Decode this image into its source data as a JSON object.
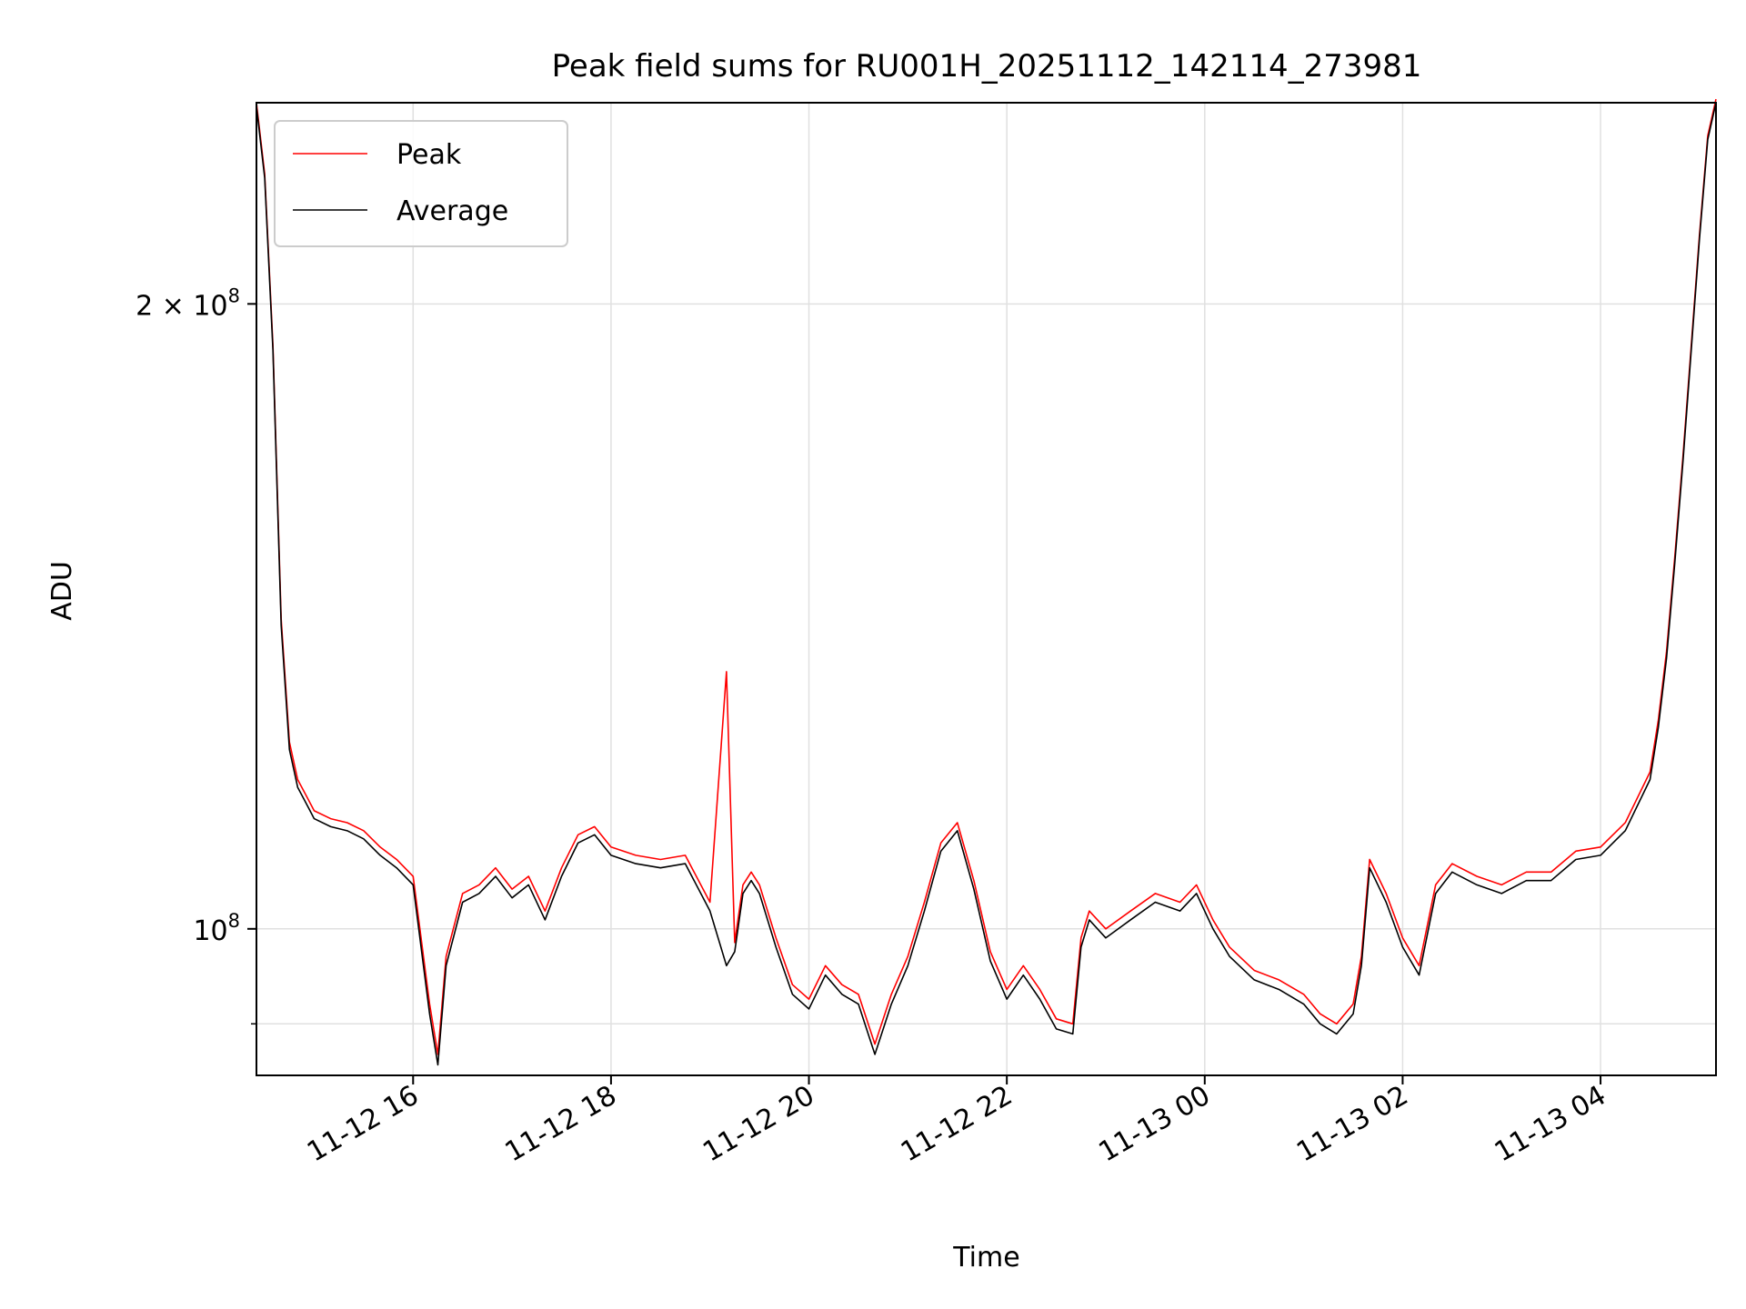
{
  "chart_data": {
    "type": "line",
    "title": "Peak field sums for RU001H_20251112_142114_273981",
    "xlabel": "Time",
    "ylabel": "ADU",
    "yscale": "log",
    "xlim": [
      "2025-11-12 14:25",
      "2025-11-13 05:10"
    ],
    "ylim": [
      85000000,
      250000000
    ],
    "grid": true,
    "legend_position": "top-left",
    "x_ticks": [
      "11-12 16",
      "11-12 18",
      "11-12 20",
      "11-12 22",
      "11-13 00",
      "11-13 02",
      "11-13 04"
    ],
    "y_ticks": [
      {
        "value": 100000000,
        "label_base": "10",
        "label_exp": "8"
      },
      {
        "value": 200000000,
        "label_base": "2 × 10",
        "label_exp": "8"
      }
    ],
    "x": [
      "2025-11-12 14:25",
      "2025-11-12 14:30",
      "2025-11-12 14:35",
      "2025-11-12 14:40",
      "2025-11-12 14:45",
      "2025-11-12 14:50",
      "2025-11-12 14:55",
      "2025-11-12 15:00",
      "2025-11-12 15:10",
      "2025-11-12 15:20",
      "2025-11-12 15:30",
      "2025-11-12 15:40",
      "2025-11-12 15:50",
      "2025-11-12 16:00",
      "2025-11-12 16:10",
      "2025-11-12 16:15",
      "2025-11-12 16:20",
      "2025-11-12 16:30",
      "2025-11-12 16:40",
      "2025-11-12 16:50",
      "2025-11-12 17:00",
      "2025-11-12 17:10",
      "2025-11-12 17:20",
      "2025-11-12 17:30",
      "2025-11-12 17:40",
      "2025-11-12 17:50",
      "2025-11-12 18:00",
      "2025-11-12 18:15",
      "2025-11-12 18:30",
      "2025-11-12 18:45",
      "2025-11-12 19:00",
      "2025-11-12 19:10",
      "2025-11-12 19:15",
      "2025-11-12 19:20",
      "2025-11-12 19:25",
      "2025-11-12 19:30",
      "2025-11-12 19:40",
      "2025-11-12 19:50",
      "2025-11-12 20:00",
      "2025-11-12 20:10",
      "2025-11-12 20:20",
      "2025-11-12 20:30",
      "2025-11-12 20:40",
      "2025-11-12 20:50",
      "2025-11-12 21:00",
      "2025-11-12 21:10",
      "2025-11-12 21:20",
      "2025-11-12 21:30",
      "2025-11-12 21:40",
      "2025-11-12 21:50",
      "2025-11-12 22:00",
      "2025-11-12 22:10",
      "2025-11-12 22:20",
      "2025-11-12 22:30",
      "2025-11-12 22:40",
      "2025-11-12 22:45",
      "2025-11-12 22:50",
      "2025-11-12 23:00",
      "2025-11-12 23:15",
      "2025-11-12 23:30",
      "2025-11-12 23:45",
      "2025-11-12 23:55",
      "2025-11-13 00:05",
      "2025-11-13 00:15",
      "2025-11-13 00:30",
      "2025-11-13 00:45",
      "2025-11-13 01:00",
      "2025-11-13 01:10",
      "2025-11-13 01:20",
      "2025-11-13 01:30",
      "2025-11-13 01:35",
      "2025-11-13 01:40",
      "2025-11-13 01:50",
      "2025-11-13 02:00",
      "2025-11-13 02:10",
      "2025-11-13 02:20",
      "2025-11-13 02:30",
      "2025-11-13 02:45",
      "2025-11-13 03:00",
      "2025-11-13 03:15",
      "2025-11-13 03:30",
      "2025-11-13 03:45",
      "2025-11-13 04:00",
      "2025-11-13 04:15",
      "2025-11-13 04:30",
      "2025-11-13 04:35",
      "2025-11-13 04:40",
      "2025-11-13 04:45",
      "2025-11-13 04:50",
      "2025-11-13 04:55",
      "2025-11-13 05:00",
      "2025-11-13 05:05",
      "2025-11-13 05:10"
    ],
    "series": [
      {
        "name": "Average",
        "color": "#000000",
        "values": [
          249000000,
          230000000,
          190000000,
          140000000,
          122000000,
          117000000,
          115000000,
          113000000,
          112000000,
          111500000,
          110500000,
          108500000,
          107000000,
          105000000,
          91000000,
          86000000,
          96000000,
          103000000,
          104000000,
          106000000,
          103500000,
          105000000,
          101000000,
          106000000,
          110000000,
          111000000,
          108500000,
          107500000,
          107000000,
          107500000,
          102000000,
          96000000,
          97500000,
          104000000,
          105500000,
          104000000,
          98000000,
          93000000,
          91500000,
          95000000,
          93000000,
          92000000,
          87000000,
          92000000,
          96000000,
          102000000,
          109000000,
          111500000,
          104500000,
          96500000,
          92500000,
          95000000,
          92500000,
          89500000,
          89000000,
          98000000,
          101000000,
          99000000,
          101000000,
          103000000,
          102000000,
          104000000,
          100000000,
          97000000,
          94500000,
          93500000,
          92000000,
          90000000,
          89000000,
          91000000,
          96000000,
          107000000,
          103000000,
          98000000,
          95000000,
          104000000,
          106500000,
          105000000,
          104000000,
          105500000,
          105500000,
          108000000,
          108500000,
          111500000,
          118000000,
          125000000,
          135000000,
          150000000,
          168000000,
          190000000,
          215000000,
          240000000,
          250000000
        ]
      },
      {
        "name": "Peak",
        "color": "#ff0000",
        "values": [
          250000000,
          231000000,
          191000000,
          141000000,
          123000000,
          118000000,
          116000000,
          114000000,
          113000000,
          112500000,
          111500000,
          109500000,
          108000000,
          106000000,
          92000000,
          87000000,
          97000000,
          104000000,
          105000000,
          107000000,
          104500000,
          106000000,
          102000000,
          107000000,
          111000000,
          112000000,
          109500000,
          108500000,
          108000000,
          108500000,
          103000000,
          133000000,
          98500000,
          105000000,
          106500000,
          105000000,
          99000000,
          94000000,
          92500000,
          96000000,
          94000000,
          93000000,
          88000000,
          93000000,
          97000000,
          103000000,
          110000000,
          112500000,
          105500000,
          97500000,
          93500000,
          96000000,
          93500000,
          90500000,
          90000000,
          99000000,
          102000000,
          100000000,
          102000000,
          104000000,
          103000000,
          105000000,
          101000000,
          98000000,
          95500000,
          94500000,
          93000000,
          91000000,
          90000000,
          92000000,
          97000000,
          108000000,
          104000000,
          99000000,
          96000000,
          105000000,
          107500000,
          106000000,
          105000000,
          106500000,
          106500000,
          109000000,
          109500000,
          112500000,
          119000000,
          126000000,
          136000000,
          151000000,
          169000000,
          191000000,
          216000000,
          241000000,
          251000000
        ]
      }
    ]
  }
}
